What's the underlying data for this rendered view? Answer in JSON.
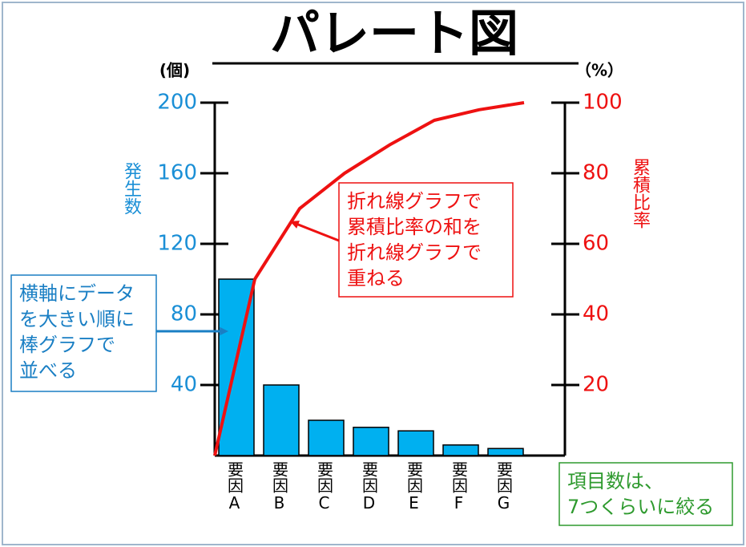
{
  "chart_data": {
    "type": "bar",
    "title": "パレート図",
    "y_label": "発生数",
    "y_unit": "(個)",
    "y2_label": "累積比率",
    "y2_unit": "（%）",
    "categories": [
      "要因A",
      "要因B",
      "要因C",
      "要因D",
      "要因E",
      "要因F",
      "要因G"
    ],
    "series": [
      {
        "name": "発生数",
        "type": "bar",
        "color": "#00b0f0",
        "values": [
          100,
          40,
          20,
          16,
          14,
          6,
          4
        ]
      },
      {
        "name": "累積比率",
        "type": "line",
        "axis": "y2",
        "color": "#ee1111",
        "values": [
          50,
          70,
          80,
          88,
          95,
          98,
          100
        ]
      }
    ],
    "ylim": [
      0,
      200
    ],
    "yticks": [
      40,
      80,
      120,
      160,
      200
    ],
    "y_color": "#1a8fd6",
    "y2lim": [
      0,
      100
    ],
    "y2ticks": [
      20,
      40,
      60,
      80,
      100
    ],
    "y2_color": "#ee1111",
    "annotations": [
      {
        "lines": [
          "折れ線グラフで",
          "累積比率の和を",
          "折れ線グラフで",
          "重ねる"
        ],
        "color": "#ee1111"
      },
      {
        "lines": [
          "横軸にデータ",
          "を大きい順に",
          "棒グラフで",
          "並べる"
        ],
        "color": "#1a7fc4"
      },
      {
        "lines": [
          "項目数は、",
          "7つくらいに絞る"
        ],
        "color": "#2e9a2e"
      }
    ]
  }
}
